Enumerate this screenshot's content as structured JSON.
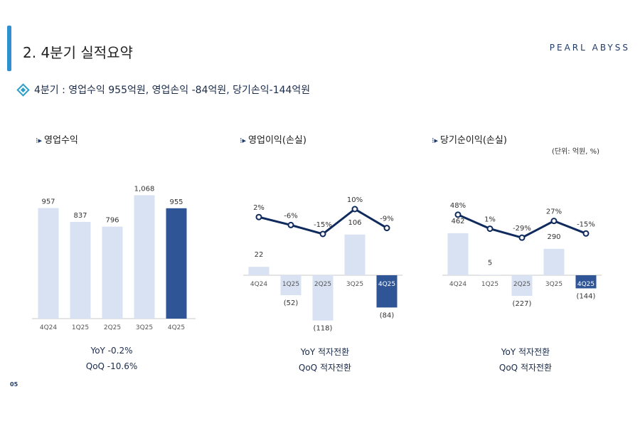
{
  "header": {
    "title": "2. 4분기 실적요약",
    "brand": "PEARL ABYSS",
    "summary": "4분기 : 영업수익 955억원, 영업손익 -84억원, 당기손익-144억원"
  },
  "unit_label": "(단위: 억원, %)",
  "page_number": "05",
  "colors": {
    "light_bar": "#d9e2f3",
    "dark_bar": "#2f5597",
    "line": "#0f2a5c",
    "accent": "#2f8fd0"
  },
  "chart_data": [
    {
      "type": "bar",
      "title": "영업수익",
      "categories": [
        "4Q24",
        "1Q25",
        "2Q25",
        "3Q25",
        "4Q25"
      ],
      "values": [
        957,
        837,
        796,
        1068,
        955
      ],
      "labels": [
        "957",
        "837",
        "796",
        "1,068",
        "955"
      ],
      "highlight_index": 4,
      "notes": [
        "YoY  -0.2%",
        "QoQ  -10.6%"
      ]
    },
    {
      "type": "bar+line",
      "title": "영업이익(손실)",
      "categories": [
        "4Q24",
        "1Q25",
        "2Q25",
        "3Q25",
        "4Q25"
      ],
      "values": [
        22,
        -52,
        -118,
        106,
        -84
      ],
      "labels": [
        "22",
        "(52)",
        "(118)",
        "106",
        "(84)"
      ],
      "margin_pct": [
        2,
        -6,
        -15,
        10,
        -9
      ],
      "margin_labels": [
        "2%",
        "-6%",
        "-15%",
        "10%",
        "-9%"
      ],
      "highlight_index": 4,
      "notes": [
        "YoY  적자전환",
        "QoQ  적자전환"
      ]
    },
    {
      "type": "bar+line",
      "title": "당기순이익(손실)",
      "categories": [
        "4Q24",
        "1Q25",
        "2Q25",
        "3Q25",
        "4Q25"
      ],
      "values": [
        462,
        5,
        -227,
        290,
        -144
      ],
      "labels": [
        "462",
        "5",
        "(227)",
        "290",
        "(144)"
      ],
      "margin_pct": [
        48,
        1,
        -29,
        27,
        -15
      ],
      "margin_labels": [
        "48%",
        "1%",
        "-29%",
        "27%",
        "-15%"
      ],
      "highlight_index": 4,
      "notes": [
        "YoY  적자전환",
        "QoQ  적자전환"
      ]
    }
  ]
}
